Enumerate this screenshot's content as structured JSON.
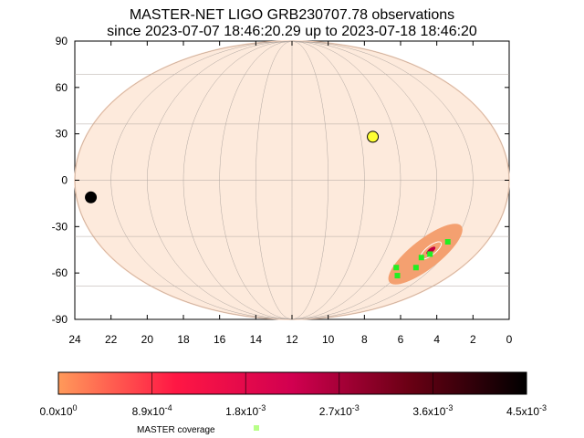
{
  "chart_data": {
    "type": "scatter",
    "projection": "mollweide",
    "title_line1": "MASTER-NET LIGO GRB230707.78 observations",
    "title_line2": "since 2023-07-07 18:46:20.29 up to 2023-07-18 18:46:20",
    "x_axis": {
      "range_hours": [
        24,
        0
      ],
      "ticks": [
        "24",
        "22",
        "20",
        "18",
        "16",
        "14",
        "12",
        "10",
        "8",
        "6",
        "4",
        "2",
        "0"
      ]
    },
    "y_axis": {
      "range_deg": [
        -90,
        90
      ],
      "ticks": [
        "90",
        "60",
        "30",
        "0",
        "-30",
        "-60",
        "-90"
      ]
    },
    "grid": true,
    "sun": {
      "ra_hours": 7.3,
      "dec_deg": 23,
      "color": "#ffff33"
    },
    "moon": {
      "ra_hours": 23.2,
      "dec_deg": -9,
      "color": "#000000"
    },
    "probability_region": {
      "center_ra_hours": 3.3,
      "center_dec_deg": -40,
      "color": "#f4a070"
    },
    "master_coverage": [
      {
        "ra_hours": 2.4,
        "dec_deg": -33
      },
      {
        "ra_hours": 3.0,
        "dec_deg": -40
      },
      {
        "ra_hours": 3.4,
        "dec_deg": -42
      },
      {
        "ra_hours": 3.2,
        "dec_deg": -48
      },
      {
        "ra_hours": 4.0,
        "dec_deg": -53
      },
      {
        "ra_hours": 4.6,
        "dec_deg": -48
      }
    ],
    "colorbar": {
      "ticks": [
        "0.0x10",
        "8.9x10",
        "1.8x10",
        "2.7x10",
        "3.6x10",
        "4.5x10"
      ],
      "exponents": [
        "0",
        "-4",
        "-3",
        "-3",
        "-3",
        "-3"
      ],
      "colors": [
        "#ff9a5a",
        "#ff1744",
        "#d10050",
        "#6a0014",
        "#000000"
      ]
    },
    "legend": {
      "label": "MASTER coverage",
      "color": "#b8ff88"
    }
  }
}
